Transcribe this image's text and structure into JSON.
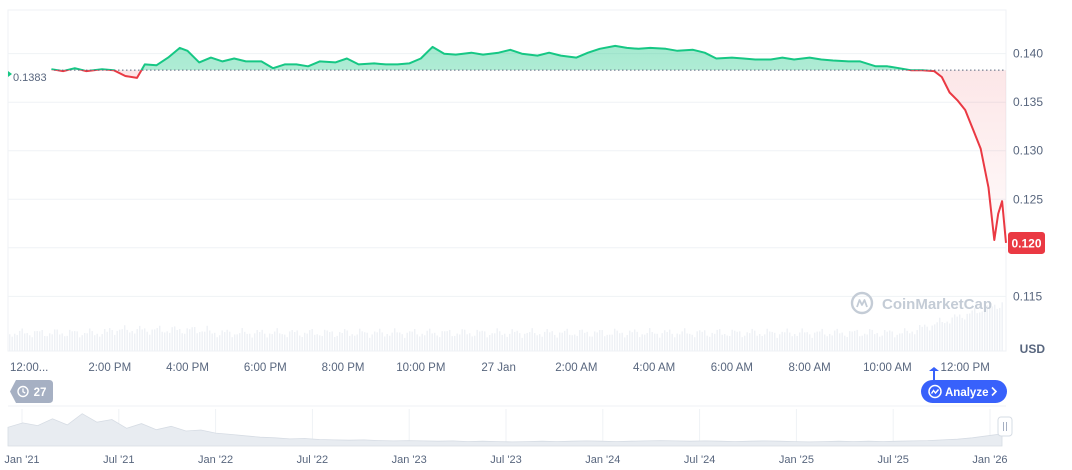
{
  "chart_data": {
    "type": "area",
    "unit": "USD",
    "open_price": 0.1383,
    "current_price_label": "0.120",
    "ylim": [
      0.1105,
      0.1445
    ],
    "y_ticks": [
      0.115,
      0.12,
      0.125,
      0.13,
      0.135,
      0.14
    ],
    "y_tick_labels": [
      "0.115",
      "",
      "0.125",
      "0.130",
      "0.135",
      "0.140"
    ],
    "time_span": [
      "12:00",
      "13:00"
    ],
    "x_ticks": [
      {
        "label": "12:00...",
        "t": 12.0
      },
      {
        "label": "2:00 PM",
        "t": 14.0
      },
      {
        "label": "4:00 PM",
        "t": 16.0
      },
      {
        "label": "6:00 PM",
        "t": 18.0
      },
      {
        "label": "8:00 PM",
        "t": 20.0
      },
      {
        "label": "10:00 PM",
        "t": 22.0
      },
      {
        "label": "27 Jan",
        "t": 24.0
      },
      {
        "label": "2:00 AM",
        "t": 26.0
      },
      {
        "label": "4:00 AM",
        "t": 28.0
      },
      {
        "label": "6:00 AM",
        "t": 30.0
      },
      {
        "label": "8:00 AM",
        "t": 32.0
      },
      {
        "label": "10:00 AM",
        "t": 34.0
      },
      {
        "label": "12:00 PM",
        "t": 36.0
      }
    ],
    "series": [
      {
        "x": [
          12.5,
          12.8,
          13.1,
          13.4,
          13.8,
          14.1,
          14.4,
          14.7,
          14.9,
          15.2,
          15.5,
          15.8,
          16.0,
          16.3,
          16.6,
          16.9,
          17.2,
          17.5,
          17.9,
          18.2,
          18.5,
          18.8,
          19.1,
          19.4,
          19.8,
          20.1,
          20.4,
          20.8,
          21.1,
          21.4,
          21.7,
          22.0,
          22.3,
          22.6,
          22.9,
          23.3,
          23.6,
          24.0,
          24.3,
          24.6,
          25.0,
          25.3,
          25.6,
          26.0,
          26.3,
          26.6,
          27.0,
          27.3,
          27.6,
          27.9,
          28.3,
          28.6,
          29.0,
          29.3,
          29.6,
          30.0,
          30.3,
          30.6,
          31.0,
          31.3,
          31.6,
          32.0,
          32.3,
          32.6,
          33.0,
          33.3,
          33.7,
          34.0,
          34.3,
          34.6,
          34.9,
          35.2,
          35.4,
          35.6,
          35.8,
          36.0,
          36.2,
          36.4,
          36.6,
          36.75,
          36.85,
          36.95,
          37.05
        ],
        "y": [
          0.1384,
          0.1382,
          0.1385,
          0.1382,
          0.1384,
          0.1383,
          0.1377,
          0.1375,
          0.1389,
          0.1388,
          0.1396,
          0.1406,
          0.1403,
          0.1391,
          0.1396,
          0.1392,
          0.1395,
          0.1392,
          0.1392,
          0.1385,
          0.1389,
          0.1389,
          0.1387,
          0.1392,
          0.1391,
          0.1395,
          0.1389,
          0.139,
          0.1389,
          0.1389,
          0.139,
          0.1395,
          0.1407,
          0.14,
          0.1399,
          0.1401,
          0.1399,
          0.1401,
          0.1404,
          0.14,
          0.1398,
          0.1401,
          0.1398,
          0.1396,
          0.1401,
          0.1405,
          0.1408,
          0.1406,
          0.1405,
          0.1406,
          0.1405,
          0.1403,
          0.1404,
          0.1401,
          0.1395,
          0.1396,
          0.1395,
          0.1394,
          0.1394,
          0.1396,
          0.1394,
          0.1396,
          0.1394,
          0.1393,
          0.1392,
          0.1392,
          0.1387,
          0.1387,
          0.1385,
          0.1383,
          0.1383,
          0.1382,
          0.1376,
          0.136,
          0.1352,
          0.1342,
          0.1322,
          0.1302,
          0.1262,
          0.1208,
          0.1235,
          0.1248,
          0.1205
        ]
      }
    ],
    "navigator_ticks": [
      "Jan '21",
      "Jul '21",
      "Jan '22",
      "Jul '22",
      "Jan '23",
      "Jul '23",
      "Jan '24",
      "Jul '24",
      "Jan '25",
      "Jul '25",
      "Jan '26"
    ],
    "navigator_series": [
      0.55,
      0.68,
      0.6,
      0.8,
      0.62,
      0.95,
      0.7,
      0.78,
      0.52,
      0.66,
      0.48,
      0.58,
      0.44,
      0.47,
      0.38,
      0.34,
      0.3,
      0.26,
      0.24,
      0.21,
      0.22,
      0.19,
      0.18,
      0.17,
      0.18,
      0.16,
      0.15,
      0.16,
      0.15,
      0.14,
      0.15,
      0.13,
      0.14,
      0.13,
      0.12,
      0.13,
      0.14,
      0.13,
      0.14,
      0.15,
      0.14,
      0.13,
      0.14,
      0.15,
      0.16,
      0.15,
      0.14,
      0.15,
      0.14,
      0.13,
      0.14,
      0.15,
      0.14,
      0.13,
      0.12,
      0.13,
      0.14,
      0.13,
      0.14,
      0.13,
      0.14,
      0.15,
      0.16,
      0.18,
      0.2,
      0.24,
      0.3,
      0.36
    ],
    "colors": {
      "up": "#16c784",
      "down": "#ea3943",
      "badge": "#ea3943",
      "analyze": "#3861fb",
      "counter": "#a6b0c3",
      "grid": "#eff2f5"
    }
  },
  "watermark": "CoinMarketCap",
  "controls": {
    "counter_label": "27",
    "analyze_label": "Analyze",
    "analyze_icon": "analyze-icon",
    "counter_icon": "history-icon",
    "chevron_icon": "chevron-right-icon",
    "handle_icon": "drag-handle-icon"
  }
}
